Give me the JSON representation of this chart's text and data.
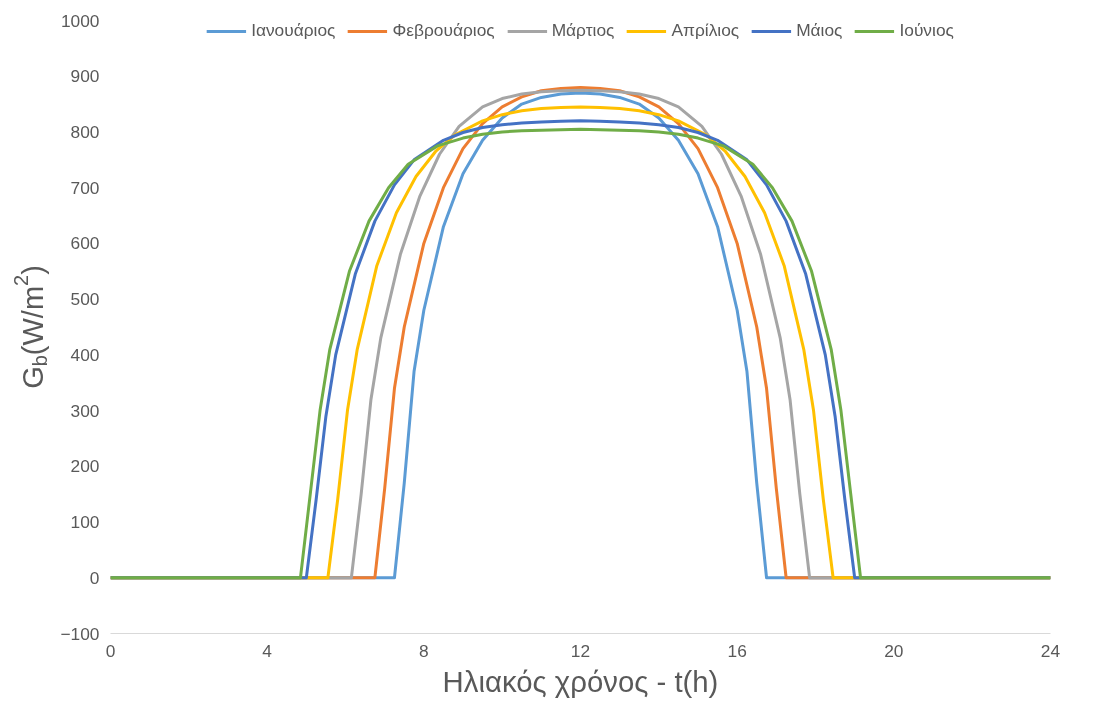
{
  "chart_data": {
    "type": "line",
    "xlabel": "Ηλιακός χρόνος - t(h)",
    "ylabel": "G$_{b}$(W/m$^{2}$)",
    "xlim": [
      0,
      24
    ],
    "xticks": [
      0,
      4,
      8,
      12,
      16,
      20,
      24
    ],
    "ylim": [
      -100,
      1000
    ],
    "yticks": [
      -100,
      0,
      100,
      200,
      300,
      400,
      500,
      600,
      700,
      800,
      900,
      1000
    ],
    "grid": false,
    "legend": "top",
    "marker": "none",
    "line_style": "solid",
    "series": [
      {
        "name": "Ιανουάριος",
        "color": "#5b9bd5",
        "x": [
          0,
          7.25,
          7.5,
          7.75,
          8,
          8.5,
          9,
          9.5,
          10,
          10.5,
          11,
          11.5,
          12,
          12.5,
          13,
          13.5,
          14,
          14.5,
          15,
          15.5,
          16,
          16.25,
          16.5,
          16.75,
          24
        ],
        "values": [
          0,
          0,
          170,
          370,
          480,
          630,
          725,
          785,
          825,
          850,
          862,
          868,
          870,
          868,
          862,
          850,
          825,
          785,
          725,
          630,
          480,
          370,
          170,
          0,
          0
        ]
      },
      {
        "name": "Φεβρουάριος",
        "color": "#ed7d31",
        "x": [
          0,
          6.75,
          7,
          7.25,
          7.5,
          8,
          8.5,
          9,
          9.5,
          10,
          10.5,
          11,
          11.5,
          12,
          12.5,
          13,
          13.5,
          14,
          14.5,
          15,
          15.5,
          16,
          16.5,
          16.75,
          17,
          17.25,
          24
        ],
        "values": [
          0,
          0,
          160,
          340,
          450,
          600,
          700,
          770,
          815,
          845,
          863,
          874,
          878,
          880,
          878,
          874,
          863,
          845,
          815,
          770,
          700,
          600,
          450,
          340,
          160,
          0,
          0
        ]
      },
      {
        "name": "Μάρτιος",
        "color": "#a5a5a5",
        "x": [
          0,
          6.15,
          6.4,
          6.65,
          6.9,
          7.4,
          7.9,
          8.4,
          8.9,
          9.5,
          10,
          10.5,
          11,
          11.5,
          12,
          12.5,
          13,
          13.5,
          14,
          14.5,
          15.1,
          15.6,
          16.1,
          16.6,
          17.1,
          17.35,
          17.6,
          17.85,
          24
        ],
        "values": [
          0,
          0,
          150,
          320,
          430,
          580,
          685,
          760,
          810,
          845,
          860,
          868,
          872,
          874,
          875,
          874,
          872,
          868,
          860,
          845,
          810,
          760,
          685,
          580,
          430,
          320,
          150,
          0,
          0
        ]
      },
      {
        "name": "Απρίλιος",
        "color": "#ffc000",
        "x": [
          0,
          5.55,
          5.8,
          6.05,
          6.3,
          6.8,
          7.3,
          7.8,
          8.3,
          8.8,
          9.5,
          10,
          10.5,
          11,
          11.5,
          12,
          12.5,
          13,
          13.5,
          14,
          14.5,
          15.2,
          15.7,
          16.2,
          16.7,
          17.2,
          17.7,
          17.95,
          18.2,
          18.45,
          24
        ],
        "values": [
          0,
          0,
          140,
          300,
          410,
          560,
          655,
          720,
          765,
          795,
          820,
          831,
          838,
          842,
          844,
          845,
          844,
          842,
          838,
          831,
          820,
          795,
          765,
          720,
          655,
          560,
          410,
          300,
          140,
          0,
          0
        ]
      },
      {
        "name": "Μάιος",
        "color": "#4472c4",
        "x": [
          0,
          5,
          5.25,
          5.5,
          5.75,
          6.25,
          6.75,
          7.25,
          7.75,
          8.5,
          9,
          9.5,
          10,
          10.5,
          11,
          11.5,
          12,
          12.5,
          13,
          13.5,
          14,
          14.5,
          15,
          15.5,
          16.25,
          16.75,
          17.25,
          17.75,
          18.25,
          18.5,
          18.75,
          19,
          24
        ],
        "values": [
          0,
          0,
          140,
          290,
          400,
          545,
          640,
          705,
          750,
          785,
          799,
          808,
          813,
          816,
          818,
          819,
          820,
          819,
          818,
          816,
          813,
          808,
          799,
          785,
          750,
          705,
          640,
          545,
          400,
          290,
          140,
          0,
          0
        ]
      },
      {
        "name": "Ιούνιος",
        "color": "#70ad47",
        "x": [
          0,
          4.85,
          5.1,
          5.35,
          5.6,
          6.1,
          6.6,
          7.1,
          7.6,
          8.35,
          9,
          9.5,
          10,
          10.5,
          11,
          11.5,
          12,
          12.5,
          13,
          13.5,
          14,
          14.5,
          15,
          15.65,
          16.4,
          16.9,
          17.4,
          17.9,
          18.4,
          18.65,
          18.9,
          19.15,
          24
        ],
        "values": [
          0,
          0,
          150,
          300,
          410,
          550,
          640,
          700,
          742,
          775,
          789,
          796,
          800,
          802,
          803,
          804,
          805,
          804,
          803,
          802,
          800,
          796,
          789,
          775,
          742,
          700,
          640,
          550,
          410,
          300,
          150,
          0,
          0
        ]
      }
    ]
  }
}
